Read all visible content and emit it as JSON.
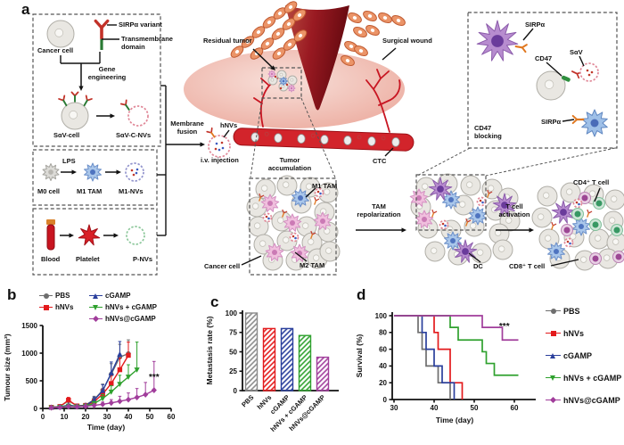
{
  "figure": {
    "panel_labels": {
      "a": "a",
      "b": "b",
      "c": "c",
      "d": "d"
    }
  },
  "colors": {
    "gray": "#6e6e6e",
    "red": "#e31a1c",
    "blue": "#2a3f9c",
    "green": "#2fa12e",
    "magenta": "#a13d9b"
  },
  "panel_a": {
    "labels": {
      "sirpa_variant": "SIRPα variant",
      "transmembrane_domain": "Transmembrane domain",
      "cancer_cell": "Cancer cell",
      "gene_engineering": "Gene engineering",
      "sav_cell": "SαV-cell",
      "sav_c_nvs": "SαV-C-NVs",
      "lps": "LPS",
      "m0_cell": "M0 cell",
      "m1_tam": "M1 TAM",
      "m1_nvs": "M1-NVs",
      "blood": "Blood",
      "platelet": "Platelet",
      "p_nvs": "P-NVs",
      "membrane_fusion": "Membrane fusion",
      "hnvs": "hNVs",
      "iv_injection": "i.v. injection",
      "residual_tumor": "Residual tumor",
      "surgical_wound": "Surgical wound",
      "tumor_accumulation": "Tumor accumulation",
      "ctc": "CTC",
      "sirpa_top": "SIRPα",
      "cd47": "CD47",
      "sav": "SαV",
      "sirpa_bottom": "SIRPα",
      "cd47_blocking": "CD47 blocking",
      "cluster_m1_tam": "M1 TAM",
      "cluster_m2_tam": "M2 TAM",
      "cluster_cancer_cell": "Cancer cell",
      "tam_repolarization": "TAM repolarization",
      "dc": "DC",
      "t_cell_activation": "T cell activation",
      "cd4_t_cell": "CD4⁺ T cell",
      "cd8_t_cell": "CD8⁺ T cell"
    }
  },
  "chart_data": [
    {
      "type": "line",
      "panel": "b",
      "xlabel": "Time (day)",
      "ylabel": "Tumour size (mm³)",
      "xticks": [
        0,
        10,
        20,
        30,
        40,
        50,
        60
      ],
      "yticks": [
        0,
        500,
        1000,
        1500
      ],
      "xlim": [
        0,
        62
      ],
      "ylim": [
        0,
        1500
      ],
      "grid": false,
      "legend_position": "top",
      "annotation": {
        "text": "***",
        "x": 52,
        "y": 520
      },
      "series": [
        {
          "name": "PBS",
          "color": "#6e6e6e",
          "marker": "circle",
          "x": [
            4,
            8,
            12,
            16,
            20,
            24,
            28,
            32,
            36,
            40
          ],
          "y": [
            20,
            35,
            140,
            45,
            60,
            160,
            330,
            620,
            930,
            990
          ],
          "err": [
            10,
            15,
            45,
            15,
            20,
            60,
            110,
            190,
            230,
            250
          ]
        },
        {
          "name": "hNVs",
          "color": "#e31a1c",
          "marker": "square",
          "x": [
            4,
            8,
            12,
            16,
            20,
            24,
            28,
            32,
            36,
            40
          ],
          "y": [
            20,
            35,
            150,
            45,
            55,
            120,
            260,
            450,
            700,
            960
          ],
          "err": [
            10,
            15,
            50,
            15,
            20,
            40,
            90,
            150,
            210,
            240
          ]
        },
        {
          "name": "cGAMP",
          "color": "#2a3f9c",
          "marker": "triangle",
          "x": [
            4,
            8,
            12,
            16,
            20,
            24,
            28,
            32,
            36
          ],
          "y": [
            20,
            30,
            60,
            40,
            55,
            150,
            320,
            640,
            980
          ],
          "err": [
            10,
            12,
            20,
            15,
            20,
            55,
            110,
            200,
            230
          ]
        },
        {
          "name": "hNVs + cGAMP",
          "color": "#2fa12e",
          "marker": "triangle-down",
          "x": [
            4,
            8,
            12,
            16,
            20,
            24,
            28,
            32,
            36,
            40,
            44
          ],
          "y": [
            15,
            25,
            45,
            35,
            45,
            90,
            180,
            300,
            440,
            570,
            700
          ],
          "err": [
            8,
            10,
            15,
            12,
            15,
            35,
            70,
            110,
            160,
            220,
            500
          ]
        },
        {
          "name": "hNVs@cGAMP",
          "color": "#a13d9b",
          "marker": "diamond",
          "x": [
            4,
            8,
            12,
            16,
            20,
            24,
            28,
            32,
            36,
            40,
            44,
            48,
            52
          ],
          "y": [
            15,
            20,
            35,
            30,
            40,
            55,
            75,
            100,
            130,
            160,
            200,
            250,
            330
          ],
          "err": [
            8,
            10,
            15,
            12,
            15,
            25,
            40,
            60,
            90,
            120,
            160,
            220,
            520
          ]
        }
      ]
    },
    {
      "type": "bar",
      "panel": "c",
      "ylabel": "Metastasis rate (%)",
      "yticks": [
        0,
        25,
        50,
        75,
        100
      ],
      "ylim": [
        0,
        100
      ],
      "grid": false,
      "hatch": true,
      "categories": [
        "PBS",
        "hNVs",
        "cGAMP",
        "hNVs + cGAMP",
        "hNVs@cGAMP"
      ],
      "values": [
        100,
        80,
        80,
        71,
        43
      ],
      "colors": [
        "#8a8a8a",
        "#e31a1c",
        "#2a3f9c",
        "#2fa12e",
        "#a13d9b"
      ]
    },
    {
      "type": "step",
      "panel": "d",
      "xlabel": "Time (day)",
      "ylabel": "Survival (%)",
      "xticks": [
        30,
        40,
        50,
        60
      ],
      "yticks": [
        0,
        20,
        40,
        60,
        80,
        100
      ],
      "xlim": [
        30,
        65
      ],
      "ylim": [
        0,
        100
      ],
      "grid": false,
      "legend_position": "right",
      "annotation": {
        "text": "***",
        "x": 57.5,
        "y": 84
      },
      "series": [
        {
          "name": "PBS",
          "color": "#6e6e6e",
          "marker": "circle",
          "steps": [
            [
              30,
              100
            ],
            [
              36,
              100
            ],
            [
              36,
              80
            ],
            [
              37,
              80
            ],
            [
              37,
              60
            ],
            [
              38,
              60
            ],
            [
              38,
              40
            ],
            [
              41,
              40
            ],
            [
              41,
              20
            ],
            [
              44,
              20
            ],
            [
              44,
              0
            ]
          ]
        },
        {
          "name": "hNVs",
          "color": "#e31a1c",
          "marker": "square",
          "steps": [
            [
              30,
              100
            ],
            [
              40,
              100
            ],
            [
              40,
              80
            ],
            [
              41,
              80
            ],
            [
              41,
              60
            ],
            [
              44,
              60
            ],
            [
              44,
              20
            ],
            [
              47,
              20
            ],
            [
              47,
              0
            ]
          ]
        },
        {
          "name": "cGAMP",
          "color": "#2a3f9c",
          "marker": "triangle",
          "steps": [
            [
              30,
              100
            ],
            [
              37,
              100
            ],
            [
              37,
              80
            ],
            [
              38,
              80
            ],
            [
              38,
              60
            ],
            [
              40,
              60
            ],
            [
              40,
              40
            ],
            [
              42,
              40
            ],
            [
              42,
              20
            ],
            [
              45,
              20
            ],
            [
              45,
              0
            ]
          ]
        },
        {
          "name": "hNVs + cGAMP",
          "color": "#2fa12e",
          "marker": "triangle-down",
          "steps": [
            [
              30,
              100
            ],
            [
              44,
              100
            ],
            [
              44,
              86
            ],
            [
              46,
              86
            ],
            [
              46,
              71
            ],
            [
              52,
              71
            ],
            [
              52,
              57
            ],
            [
              53,
              57
            ],
            [
              53,
              43
            ],
            [
              55,
              43
            ],
            [
              55,
              29
            ],
            [
              61,
              29
            ]
          ]
        },
        {
          "name": "hNVs@cGAMP",
          "color": "#a13d9b",
          "marker": "diamond",
          "steps": [
            [
              30,
              100
            ],
            [
              52,
              100
            ],
            [
              52,
              86
            ],
            [
              57,
              86
            ],
            [
              57,
              71
            ],
            [
              61,
              71
            ]
          ]
        }
      ]
    }
  ]
}
